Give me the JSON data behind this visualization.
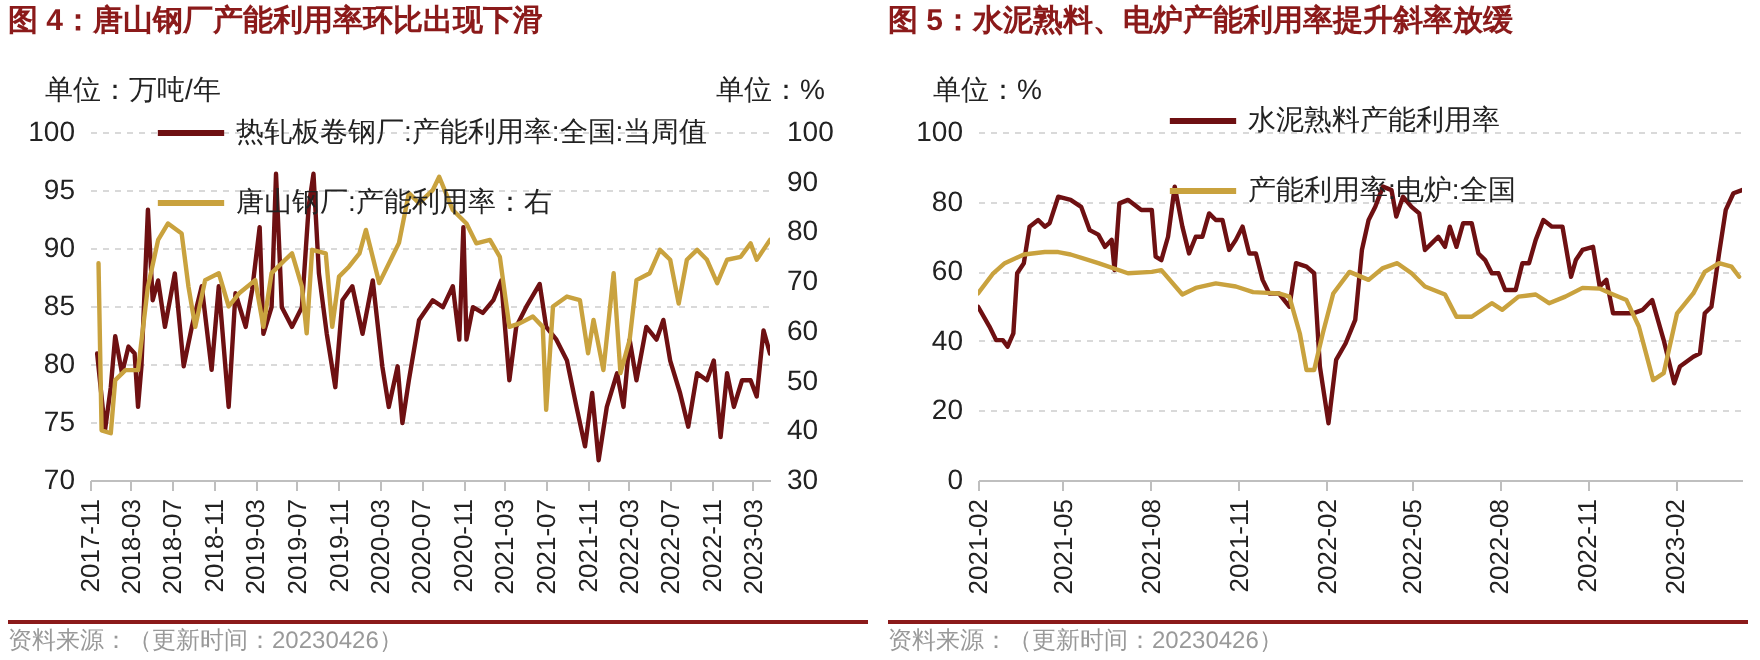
{
  "chart_data": [
    {
      "type": "line",
      "title": "图 4：唐山钢厂产能利用率环比出现下滑",
      "ylabel": "单位：万吨/年",
      "y2label": "单位：%",
      "xlim": [
        "2017-11-01",
        "2023-04-20"
      ],
      "xticks": [
        "2017-11",
        "2018-03",
        "2018-07",
        "2018-11",
        "2019-03",
        "2019-07",
        "2019-11",
        "2020-03",
        "2020-07",
        "2020-11",
        "2021-03",
        "2021-07",
        "2021-11",
        "2022-03",
        "2022-07",
        "2022-11",
        "2023-03"
      ],
      "ylim": [
        70,
        100
      ],
      "yticks": [
        70,
        75,
        80,
        85,
        90,
        95,
        100
      ],
      "y2lim": [
        30,
        100
      ],
      "y2ticks": [
        30,
        40,
        50,
        60,
        70,
        80,
        90,
        100
      ],
      "grid": "y",
      "legend": "top",
      "series": [
        {
          "name": "热轧板卷钢厂:产能利用率:全国:当周值",
          "color": "#6e1012",
          "x": [
            "2017-11-22",
            "2017-12-15",
            "2018-01-01",
            "2018-01-14",
            "2018-02-03",
            "2018-02-22",
            "2018-03-12",
            "2018-03-22",
            "2018-04-01",
            "2018-04-20",
            "2018-05-04",
            "2018-05-20",
            "2018-06-09",
            "2018-07-08",
            "2018-08-03",
            "2018-08-27",
            "2018-09-25",
            "2018-10-24",
            "2018-11-14",
            "2018-12-13",
            "2019-01-02",
            "2019-02-01",
            "2019-02-20",
            "2019-03-14",
            "2019-03-25",
            "2019-04-18",
            "2019-05-01",
            "2019-05-18",
            "2019-06-17",
            "2019-07-16",
            "2019-08-05",
            "2019-08-19",
            "2019-09-04",
            "2019-09-27",
            "2019-10-22",
            "2019-11-12",
            "2019-12-11",
            "2020-01-10",
            "2020-02-09",
            "2020-03-08",
            "2020-03-27",
            "2020-04-22",
            "2020-05-06",
            "2020-05-25",
            "2020-06-24",
            "2020-08-03",
            "2020-09-02",
            "2020-10-01",
            "2020-10-20",
            "2020-11-01",
            "2020-11-10",
            "2020-11-29",
            "2020-12-28",
            "2021-01-28",
            "2021-02-20",
            "2021-03-16",
            "2021-04-05",
            "2021-05-04",
            "2021-06-13",
            "2021-07-02",
            "2021-08-01",
            "2021-09-01",
            "2021-09-29",
            "2021-10-24",
            "2021-11-14",
            "2021-12-03",
            "2021-12-27",
            "2022-01-26",
            "2022-02-14",
            "2022-03-04",
            "2022-03-24",
            "2022-04-22",
            "2022-05-22",
            "2022-06-11",
            "2022-07-01",
            "2022-07-30",
            "2022-08-23",
            "2022-09-18",
            "2022-10-17",
            "2022-11-06",
            "2022-11-26",
            "2022-12-15",
            "2023-01-04",
            "2023-01-28",
            "2023-02-22",
            "2023-03-12",
            "2023-04-01",
            "2023-04-20"
          ],
          "values": [
            80.9,
            74.3,
            78,
            82.4,
            79.2,
            81.5,
            80.9,
            76.3,
            79.8,
            93.3,
            85.5,
            87.2,
            83.2,
            87.8,
            79.8,
            83.2,
            86.7,
            79.5,
            86.7,
            76.3,
            86.1,
            83.2,
            86.4,
            91.8,
            82.6,
            84.9,
            96.4,
            84.9,
            83.2,
            84.9,
            93.6,
            96.4,
            87.8,
            82.6,
            78,
            85.5,
            86.7,
            82.6,
            87.2,
            79.8,
            76.3,
            79.8,
            74.9,
            78.6,
            83.8,
            85.5,
            84.9,
            86.7,
            82.1,
            91.8,
            82.1,
            84.9,
            84.4,
            85.5,
            87.2,
            78.6,
            83.2,
            84.9,
            86.9,
            83.2,
            82.1,
            80.3,
            76.3,
            72.9,
            77.5,
            71.7,
            76.3,
            79.2,
            76.3,
            82.1,
            78.6,
            83.2,
            82.1,
            83.8,
            80.3,
            77.5,
            74.6,
            79.2,
            78.6,
            80.3,
            73.7,
            79.2,
            76.3,
            78.6,
            78.6,
            77.2,
            82.9,
            80.9
          ]
        },
        {
          "name": "唐山钢厂:产能利用率：右",
          "color": "#c9a23e",
          "axis": "y2",
          "x": [
            "2017-11-26",
            "2017-12-05",
            "2018-01-01",
            "2018-01-14",
            "2018-02-13",
            "2018-03-22",
            "2018-04-20",
            "2018-05-20",
            "2018-06-18",
            "2018-07-28",
            "2018-08-17",
            "2018-09-06",
            "2018-10-05",
            "2018-11-14",
            "2018-12-13",
            "2019-01-12",
            "2019-03-01",
            "2019-03-25",
            "2019-04-18",
            "2019-05-28",
            "2019-06-17",
            "2019-07-16",
            "2019-07-30",
            "2019-08-15",
            "2019-09-24",
            "2019-10-13",
            "2019-11-02",
            "2019-12-01",
            "2020-01-01",
            "2020-01-20",
            "2020-02-28",
            "2020-04-26",
            "2020-05-25",
            "2020-06-24",
            "2020-08-03",
            "2020-08-22",
            "2020-10-01",
            "2020-11-10",
            "2020-12-09",
            "2021-01-18",
            "2021-02-16",
            "2021-03-16",
            "2021-04-15",
            "2021-05-24",
            "2021-06-22",
            "2021-07-02",
            "2021-07-22",
            "2021-09-01",
            "2021-10-09",
            "2021-11-02",
            "2021-11-18",
            "2021-12-17",
            "2022-01-16",
            "2022-02-05",
            "2022-03-04",
            "2022-03-24",
            "2022-05-02",
            "2022-06-01",
            "2022-07-01",
            "2022-07-26",
            "2022-08-19",
            "2022-09-18",
            "2022-10-17",
            "2022-11-16",
            "2022-12-15",
            "2023-01-24",
            "2023-02-22",
            "2023-03-12",
            "2023-04-20"
          ],
          "values": [
            73.6,
            40,
            39.4,
            50.1,
            52.1,
            52.1,
            68.9,
            78.3,
            81.6,
            79.6,
            68.9,
            60.8,
            70.2,
            71.6,
            64.9,
            67.5,
            70.2,
            60.8,
            71.6,
            74.3,
            75.6,
            68.9,
            59.5,
            76.3,
            75.6,
            60.8,
            70.9,
            72.9,
            75.6,
            80.3,
            69.6,
            77.7,
            87.7,
            85.7,
            88.3,
            91,
            84.3,
            81.6,
            77.6,
            78.3,
            74.9,
            60.8,
            61.5,
            62.9,
            60.8,
            44.1,
            64.9,
            66.9,
            66.2,
            55.5,
            62.2,
            52.1,
            71.6,
            51.5,
            58.2,
            70.2,
            71.6,
            76.3,
            74.3,
            65.5,
            74.3,
            76.3,
            74.3,
            69.6,
            74.3,
            74.9,
            77.6,
            74.3,
            78.3
          ]
        }
      ],
      "annotations": [
        "资料来源：（更新时间：20230426）"
      ]
    },
    {
      "type": "line",
      "title": "图 5：水泥熟料、电炉产能利用率提升斜率放缓",
      "ylabel": "单位：%",
      "xlim": [
        "2021-02-01",
        "2023-04-12"
      ],
      "xticks": [
        "2021-02",
        "2021-05",
        "2021-08",
        "2021-11",
        "2022-02",
        "2022-05",
        "2022-08",
        "2022-11",
        "2023-02"
      ],
      "ylim": [
        0,
        100
      ],
      "yticks": [
        0,
        20,
        40,
        60,
        80,
        100
      ],
      "grid": "y",
      "legend": "top",
      "series": [
        {
          "name": "水泥熟料产能利用率",
          "color": "#6e1012",
          "x": [
            "2021-02-01",
            "2021-02-13",
            "2021-02-20",
            "2021-02-27",
            "2021-03-04",
            "2021-03-10",
            "2021-03-14",
            "2021-03-21",
            "2021-03-27",
            "2021-04-05",
            "2021-04-12",
            "2021-04-17",
            "2021-04-26",
            "2021-05-09",
            "2021-05-20",
            "2021-05-29",
            "2021-06-07",
            "2021-06-14",
            "2021-06-21",
            "2021-06-24",
            "2021-06-29",
            "2021-07-08",
            "2021-07-22",
            "2021-08-02",
            "2021-08-06",
            "2021-08-12",
            "2021-08-19",
            "2021-08-26",
            "2021-09-03",
            "2021-09-10",
            "2021-09-17",
            "2021-09-24",
            "2021-10-01",
            "2021-10-08",
            "2021-10-15",
            "2021-10-22",
            "2021-10-29",
            "2021-11-05",
            "2021-11-12",
            "2021-11-19",
            "2021-11-26",
            "2021-12-03",
            "2021-12-13",
            "2021-12-24",
            "2021-12-31",
            "2022-01-11",
            "2022-01-19",
            "2022-01-25",
            "2022-02-03",
            "2022-02-11",
            "2022-02-21",
            "2022-03-03",
            "2022-03-10",
            "2022-03-17",
            "2022-03-24",
            "2022-04-01",
            "2022-04-10",
            "2022-04-15",
            "2022-04-22",
            "2022-05-01",
            "2022-05-09",
            "2022-05-15",
            "2022-05-22",
            "2022-05-29",
            "2022-06-05",
            "2022-06-10",
            "2022-06-17",
            "2022-06-24",
            "2022-07-03",
            "2022-07-10",
            "2022-07-17",
            "2022-07-24",
            "2022-07-31",
            "2022-08-07",
            "2022-08-18",
            "2022-08-25",
            "2022-09-01",
            "2022-09-08",
            "2022-09-16",
            "2022-09-25",
            "2022-10-06",
            "2022-10-15",
            "2022-10-20",
            "2022-10-27",
            "2022-11-07",
            "2022-11-14",
            "2022-11-21",
            "2022-11-28",
            "2022-12-08",
            "2022-12-19",
            "2022-12-29",
            "2023-01-08",
            "2023-01-20",
            "2023-01-31",
            "2023-02-06",
            "2023-02-20",
            "2023-02-27",
            "2023-03-04",
            "2023-03-11",
            "2023-03-19",
            "2023-03-26",
            "2023-04-03",
            "2023-04-12"
          ],
          "values": [
            49.8,
            44.1,
            40.2,
            40.2,
            38.3,
            42.1,
            59.4,
            62.3,
            72.8,
            74.7,
            72.8,
            73.8,
            81.4,
            80.5,
            78.5,
            71.8,
            70.5,
            67,
            69,
            60.3,
            79.5,
            80.5,
            77.6,
            77.6,
            64.2,
            63.2,
            69.9,
            84.3,
            72.8,
            65.1,
            69.9,
            69.9,
            76.6,
            74.7,
            74.7,
            66.1,
            69,
            72.8,
            65.1,
            65.1,
            57.5,
            53.6,
            53.6,
            49.8,
            62.3,
            61.3,
            59.4,
            32.6,
            16.3,
            34.5,
            39.3,
            46,
            66.1,
            74.7,
            78.5,
            84.3,
            83.3,
            75.7,
            81.4,
            78.5,
            76.6,
            66.1,
            68,
            69.9,
            67,
            72.8,
            67,
            73.8,
            73.8,
            65.1,
            63.2,
            59.4,
            59.4,
            54.6,
            54.6,
            62.3,
            62.3,
            69,
            74.7,
            72.8,
            72.8,
            58.4,
            63.2,
            66.1,
            67,
            55.6,
            57.5,
            47.9,
            47.9,
            47.9,
            48.9,
            51.7,
            40.2,
            27.8,
            32.6,
            35.4,
            36.4,
            47.9,
            49.8,
            65.1,
            77.6,
            82.4,
            83.3
          ]
        },
        {
          "name": "产能利用率:电炉:全国",
          "color": "#c9a23e",
          "x": [
            "2021-02-01",
            "2021-02-17",
            "2021-03-01",
            "2021-03-21",
            "2021-04-12",
            "2021-04-26",
            "2021-05-09",
            "2021-06-07",
            "2021-07-08",
            "2021-08-02",
            "2021-08-12",
            "2021-09-03",
            "2021-09-17",
            "2021-10-08",
            "2021-10-29",
            "2021-11-16",
            "2021-12-13",
            "2021-12-24",
            "2022-01-04",
            "2022-01-11",
            "2022-01-19",
            "2022-01-28",
            "2022-02-08",
            "2022-02-25",
            "2022-03-17",
            "2022-04-01",
            "2022-04-16",
            "2022-05-01",
            "2022-05-15",
            "2022-06-05",
            "2022-06-17",
            "2022-07-03",
            "2022-07-24",
            "2022-08-04",
            "2022-08-21",
            "2022-09-08",
            "2022-09-22",
            "2022-10-09",
            "2022-10-27",
            "2022-11-14",
            "2022-11-28",
            "2022-12-12",
            "2022-12-25",
            "2023-01-09",
            "2023-01-20",
            "2023-02-03",
            "2023-02-20",
            "2023-03-04",
            "2023-03-19",
            "2023-04-01",
            "2023-04-09"
          ],
          "values": [
            53.6,
            59.4,
            62.3,
            64.8,
            65.5,
            65.5,
            64.8,
            62.3,
            59.4,
            59.8,
            60.3,
            53.3,
            55.2,
            56.5,
            55.6,
            54,
            53.6,
            52.7,
            42.1,
            31.6,
            31.6,
            42.1,
            53.6,
            59.8,
            57.5,
            60.9,
            62.3,
            59.4,
            55.6,
            53.3,
            46.9,
            46.9,
            50.8,
            48.9,
            52.7,
            53.3,
            50.8,
            52.7,
            55.2,
            55,
            53.3,
            51.7,
            44.1,
            28.7,
            30.7,
            47.9,
            53.6,
            59.8,
            62.3,
            61.3,
            58.4
          ]
        }
      ],
      "annotations": [
        "资料来源：（更新时间：20230426）"
      ]
    }
  ]
}
